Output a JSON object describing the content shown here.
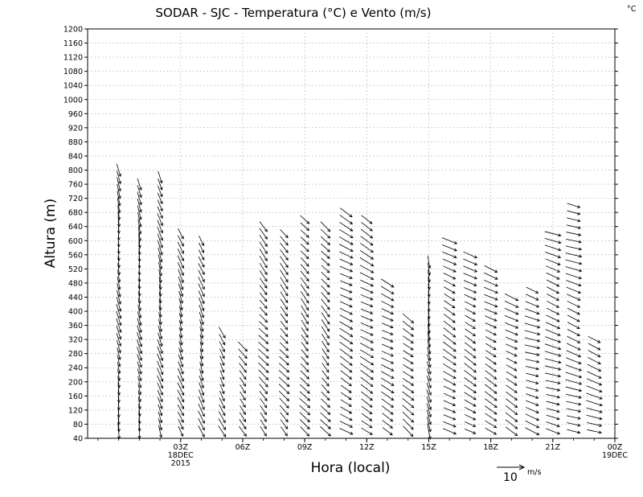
{
  "chart_data": {
    "type": "wind_barb_profile",
    "title": "SODAR - SJC - Temperatura (°C) e Vento (m/s)",
    "corner_unit": "°C",
    "xlabel": "Hora (local)",
    "ylabel": "Altura (m)",
    "xlim_hours": [
      -1.5,
      24
    ],
    "ylim": [
      40,
      1200
    ],
    "y_ticks": [
      40,
      80,
      120,
      160,
      200,
      240,
      280,
      320,
      360,
      400,
      440,
      480,
      520,
      560,
      600,
      640,
      680,
      720,
      760,
      800,
      840,
      880,
      920,
      960,
      1000,
      1040,
      1080,
      1120,
      1160,
      1200
    ],
    "x_ticks": [
      {
        "hour": 3,
        "label": "03Z",
        "sub": [
          "18DEC",
          "2015"
        ]
      },
      {
        "hour": 6,
        "label": "06Z",
        "sub": []
      },
      {
        "hour": 9,
        "label": "09Z",
        "sub": []
      },
      {
        "hour": 12,
        "label": "12Z",
        "sub": []
      },
      {
        "hour": 15,
        "label": "15Z",
        "sub": []
      },
      {
        "hour": 18,
        "label": "18Z",
        "sub": []
      },
      {
        "hour": 21,
        "label": "21Z",
        "sub": []
      },
      {
        "hour": 24,
        "label": "00Z",
        "sub": [
          "19DEC"
        ]
      }
    ],
    "grid": true,
    "reference_vector": {
      "value": "10",
      "unit": "m/s"
    },
    "profiles": [
      {
        "hour": 0.0,
        "top": 800,
        "dir": 350,
        "speed": 6
      },
      {
        "hour": 1.0,
        "top": 760,
        "dir": 350,
        "speed": 6
      },
      {
        "hour": 2.0,
        "top": 780,
        "dir": 345,
        "speed": 6
      },
      {
        "hour": 3.0,
        "top": 620,
        "dir": 340,
        "speed": 5
      },
      {
        "hour": 4.0,
        "top": 600,
        "dir": 340,
        "speed": 5
      },
      {
        "hour": 5.0,
        "top": 340,
        "dir": 330,
        "speed": 4
      },
      {
        "hour": 6.0,
        "top": 300,
        "dir": 320,
        "speed": 4
      },
      {
        "hour": 7.0,
        "top": 640,
        "dir": 320,
        "speed": 5
      },
      {
        "hour": 8.0,
        "top": 620,
        "dir": 320,
        "speed": 5
      },
      {
        "hour": 9.0,
        "top": 660,
        "dir": 320,
        "speed": 5
      },
      {
        "hour": 10.0,
        "top": 640,
        "dir": 320,
        "speed": 5
      },
      {
        "hour": 11.0,
        "top": 690,
        "dir": 300,
        "speed": 7
      },
      {
        "hour": 12.0,
        "top": 660,
        "dir": 300,
        "speed": 7
      },
      {
        "hour": 13.0,
        "top": 480,
        "dir": 300,
        "speed": 6
      },
      {
        "hour": 14.0,
        "top": 380,
        "dir": 310,
        "speed": 6
      },
      {
        "hour": 15.0,
        "top": 540,
        "dir": 350,
        "speed": 7
      },
      {
        "hour": 16.0,
        "top": 600,
        "dir": 300,
        "speed": 7
      },
      {
        "hour": 17.0,
        "top": 560,
        "dir": 300,
        "speed": 6
      },
      {
        "hour": 18.0,
        "top": 520,
        "dir": 300,
        "speed": 6
      },
      {
        "hour": 19.0,
        "top": 440,
        "dir": 300,
        "speed": 6
      },
      {
        "hour": 20.0,
        "top": 460,
        "dir": 290,
        "speed": 7
      },
      {
        "hour": 21.0,
        "top": 620,
        "dir": 290,
        "speed": 8
      },
      {
        "hour": 22.0,
        "top": 700,
        "dir": 290,
        "speed": 8
      },
      {
        "hour": 23.0,
        "top": 320,
        "dir": 290,
        "speed": 8
      }
    ]
  }
}
